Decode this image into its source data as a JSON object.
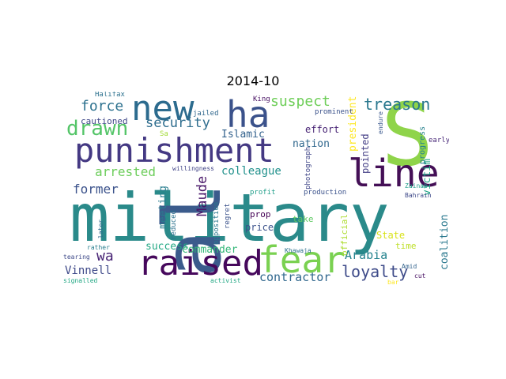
{
  "title": "2014-10",
  "words": [
    {
      "text": "military",
      "color": "#2a8a8a"
    },
    {
      "text": "al",
      "color": "#3b5b8c"
    },
    {
      "text": "S",
      "color": "#8fd44a"
    },
    {
      "text": "punishment",
      "color": "#443983"
    },
    {
      "text": "new",
      "color": "#2c6b8e"
    },
    {
      "text": "ha",
      "color": "#3b528b"
    },
    {
      "text": "raised",
      "color": "#46085c"
    },
    {
      "text": "fear",
      "color": "#7ad151"
    },
    {
      "text": "line",
      "color": "#440f56"
    },
    {
      "text": "drawn",
      "color": "#54c568"
    },
    {
      "text": "loyalty",
      "color": "#3e4b89"
    },
    {
      "text": "treason",
      "color": "#2a788e"
    },
    {
      "text": "suspect",
      "color": "#6ece58"
    },
    {
      "text": "force",
      "color": "#2c718e"
    },
    {
      "text": "security",
      "color": "#2e6d8e"
    },
    {
      "text": "arrested",
      "color": "#6ccd5a"
    },
    {
      "text": "colleague",
      "color": "#21918c"
    },
    {
      "text": "former",
      "color": "#3b528b"
    },
    {
      "text": "Maude",
      "color": "#481668"
    },
    {
      "text": "Islamic",
      "color": "#33628d"
    },
    {
      "text": "nation",
      "color": "#31688e"
    },
    {
      "text": "victim",
      "color": "#20a486"
    },
    {
      "text": "Arabia",
      "color": "#25838e"
    },
    {
      "text": "contractor",
      "color": "#31688e"
    },
    {
      "text": "Vinnell",
      "color": "#3e4989"
    },
    {
      "text": "wa",
      "color": "#482475"
    },
    {
      "text": "success",
      "color": "#22a884"
    },
    {
      "text": "commander",
      "color": "#35b779"
    },
    {
      "text": "cautioned",
      "color": "#3f4788"
    },
    {
      "text": "meeting",
      "color": "#287d8e"
    },
    {
      "text": "coalition",
      "color": "#2a788e"
    },
    {
      "text": "president",
      "color": "#fde725"
    },
    {
      "text": "official",
      "color": "#addc30"
    },
    {
      "text": "State",
      "color": "#d8e219"
    },
    {
      "text": "pointed",
      "color": "#433e85"
    },
    {
      "text": "effort",
      "color": "#482475"
    },
    {
      "text": "prop",
      "color": "#440154"
    },
    {
      "text": "price",
      "color": "#3b528b"
    },
    {
      "text": "take",
      "color": "#5ec962"
    },
    {
      "text": "time",
      "color": "#bddf26"
    },
    {
      "text": "progress",
      "color": "#26828e"
    },
    {
      "text": "prominent",
      "color": "#3b528b"
    },
    {
      "text": "jailed",
      "color": "#31688e"
    },
    {
      "text": "King",
      "color": "#471063"
    },
    {
      "text": "Halifax",
      "color": "#2c718e"
    },
    {
      "text": "Sa",
      "color": "#a2da37"
    },
    {
      "text": "willingness",
      "color": "#414487"
    },
    {
      "text": "photograph",
      "color": "#404688"
    },
    {
      "text": "opposition",
      "color": "#2a788e"
    },
    {
      "text": "regret",
      "color": "#3b528b"
    },
    {
      "text": "reduced",
      "color": "#2c728e"
    },
    {
      "text": "later",
      "color": "#31688e"
    },
    {
      "text": "rather",
      "color": "#287d8e"
    },
    {
      "text": "tearing",
      "color": "#3e4a89"
    },
    {
      "text": "signalled",
      "color": "#22a884"
    },
    {
      "text": "activist",
      "color": "#22a884"
    },
    {
      "text": "Khawaja",
      "color": "#2c718e"
    },
    {
      "text": "profit",
      "color": "#1f9e89"
    },
    {
      "text": "production",
      "color": "#3b528b"
    },
    {
      "text": "Zainab",
      "color": "#1f9e89"
    },
    {
      "text": "Bahrain",
      "color": "#3e4989"
    },
    {
      "text": "early",
      "color": "#482878"
    },
    {
      "text": "endure",
      "color": "#39568c"
    },
    {
      "text": "Amid",
      "color": "#33638d"
    },
    {
      "text": "cut",
      "color": "#471063"
    },
    {
      "text": "bar",
      "color": "#fde725"
    }
  ]
}
